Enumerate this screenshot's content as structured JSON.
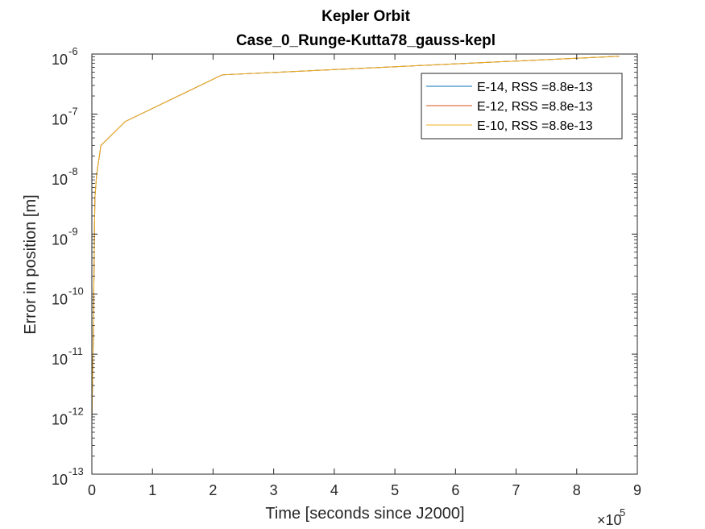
{
  "chart_data": {
    "type": "line",
    "title": "Kepler Orbit",
    "subtitle": "Case_0_Runge-Kutta78_gauss-kepl",
    "xlabel": "Time [seconds since J2000]",
    "ylabel": "Error in position [m]",
    "x_multiplier_label": "×10",
    "x_multiplier_exponent": "5",
    "x_scale_factor": 100000,
    "xlim": [
      0,
      900000
    ],
    "ylim": [
      1e-13,
      1e-06
    ],
    "yscale": "log",
    "x_ticks": [
      {
        "value": 0,
        "label": "0"
      },
      {
        "value": 100000,
        "label": "1"
      },
      {
        "value": 200000,
        "label": "2"
      },
      {
        "value": 300000,
        "label": "3"
      },
      {
        "value": 400000,
        "label": "4"
      },
      {
        "value": 500000,
        "label": "5"
      },
      {
        "value": 600000,
        "label": "6"
      },
      {
        "value": 700000,
        "label": "7"
      },
      {
        "value": 800000,
        "label": "8"
      },
      {
        "value": 900000,
        "label": "9"
      }
    ],
    "y_ticks": [
      {
        "value": 1e-13,
        "base": "10",
        "exp": "-13"
      },
      {
        "value": 1e-12,
        "base": "10",
        "exp": "-12"
      },
      {
        "value": 1e-11,
        "base": "10",
        "exp": "-11"
      },
      {
        "value": 1e-10,
        "base": "10",
        "exp": "-10"
      },
      {
        "value": 1e-09,
        "base": "10",
        "exp": "-9"
      },
      {
        "value": 1e-08,
        "base": "10",
        "exp": "-8"
      },
      {
        "value": 1e-07,
        "base": "10",
        "exp": "-7"
      },
      {
        "value": 1e-06,
        "base": "10",
        "exp": "-6"
      }
    ],
    "grid": false,
    "legend_position": "top-right",
    "series": [
      {
        "name": "E-14, RSS =8.8e-13",
        "color": "#0072BD",
        "x": [
          0,
          2000,
          5000,
          8000,
          15000,
          55000,
          215000,
          870000
        ],
        "y": [
          8e-13,
          1e-11,
          4e-09,
          1e-08,
          3e-08,
          7.5e-08,
          4.5e-07,
          9.2e-07
        ]
      },
      {
        "name": "E-12, RSS =8.8e-13",
        "color": "#D95319",
        "x": [
          0,
          2000,
          5000,
          8000,
          15000,
          55000,
          215000,
          870000
        ],
        "y": [
          8e-13,
          1e-11,
          4e-09,
          1e-08,
          3e-08,
          7.5e-08,
          4.5e-07,
          9.2e-07
        ]
      },
      {
        "name": "E-10, RSS =8.8e-13",
        "color": "#EDB120",
        "x": [
          0,
          2000,
          5000,
          8000,
          15000,
          55000,
          215000,
          870000
        ],
        "y": [
          8e-13,
          1e-11,
          4e-09,
          1e-08,
          3e-08,
          7.5e-08,
          4.5e-07,
          9.2e-07
        ]
      }
    ]
  }
}
